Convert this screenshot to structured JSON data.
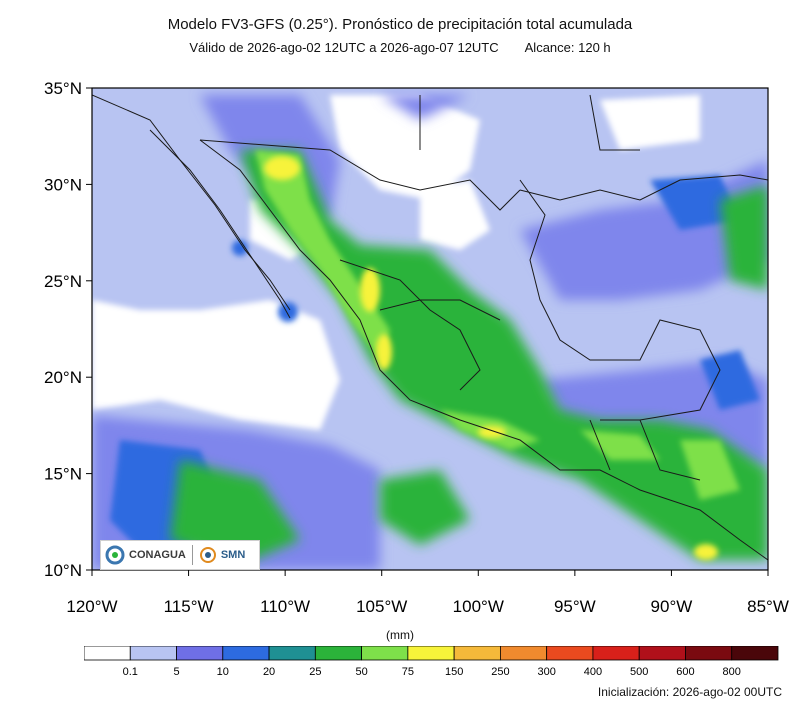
{
  "header": {
    "title": "Modelo FV3-GFS (0.25°). Pronóstico de precipitación total acumulada",
    "valid": "Válido de 2026-ago-02 12UTC a 2026-ago-07 12UTC",
    "range": "Alcance: 120 h"
  },
  "map": {
    "lat_labels": [
      "35°N",
      "30°N",
      "25°N",
      "20°N",
      "15°N",
      "10°N"
    ],
    "lon_labels": [
      "120°W",
      "115°W",
      "110°W",
      "105°W",
      "100°W",
      "95°W",
      "90°W",
      "85°W"
    ],
    "extent": {
      "lon": [
        -120,
        -85
      ],
      "lat": [
        10,
        35
      ]
    }
  },
  "logos": {
    "org1": "CONAGUA",
    "org2": "SMN"
  },
  "colorbar": {
    "unit": "(mm)",
    "labels": [
      "0.1",
      "5",
      "10",
      "20",
      "25",
      "50",
      "75",
      "150",
      "250",
      "300",
      "400",
      "500",
      "600",
      "800"
    ],
    "colors": [
      "#ffffff",
      "#b8c4f2",
      "#6f6fe6",
      "#2d6be0",
      "#1f9093",
      "#2bb33a",
      "#7ee04a",
      "#f7f33a",
      "#f5b93a",
      "#f08a2e",
      "#ea4a1f",
      "#d8201a",
      "#b0101a",
      "#7a0a10",
      "#4a060a"
    ]
  },
  "footer": {
    "init": "Inicialización: 2026-ago-02 00UTC"
  }
}
